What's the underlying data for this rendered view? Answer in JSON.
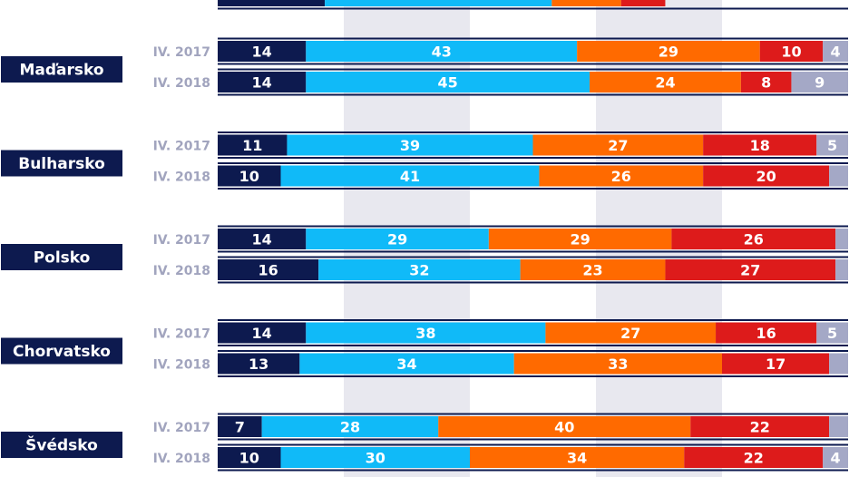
{
  "chart_data": {
    "type": "bar",
    "orientation": "horizontal",
    "stacked": true,
    "xlim": [
      0,
      100
    ],
    "grid": true,
    "colors": [
      "#0d1a4f",
      "#10baf8",
      "#ff6a00",
      "#dd1b1b",
      "#a4a8c6"
    ],
    "label_color": "#ffffff",
    "country_color": "#0d1a4f",
    "year_label_color": "#a1a4be",
    "groups": [
      {
        "country": "",
        "rows": [
          {
            "label": "",
            "values": [
              17,
              36,
              11,
              7,
              0
            ]
          }
        ]
      },
      {
        "country": "Maďarsko",
        "rows": [
          {
            "label": "IV. 2017",
            "values": [
              14,
              43,
              29,
              10,
              4
            ]
          },
          {
            "label": "IV. 2018",
            "values": [
              14,
              45,
              24,
              8,
              9
            ]
          }
        ]
      },
      {
        "country": "Bulharsko",
        "rows": [
          {
            "label": "IV. 2017",
            "values": [
              11,
              39,
              27,
              18,
              5
            ]
          },
          {
            "label": "IV. 2018",
            "values": [
              10,
              41,
              26,
              20,
              3
            ]
          }
        ]
      },
      {
        "country": "Polsko",
        "rows": [
          {
            "label": "IV. 2017",
            "values": [
              14,
              29,
              29,
              26,
              2
            ]
          },
          {
            "label": "IV. 2018",
            "values": [
              16,
              32,
              23,
              27,
              2
            ]
          }
        ]
      },
      {
        "country": "Chorvatsko",
        "rows": [
          {
            "label": "IV. 2017",
            "values": [
              14,
              38,
              27,
              16,
              5
            ]
          },
          {
            "label": "IV. 2018",
            "values": [
              13,
              34,
              33,
              17,
              3
            ]
          }
        ]
      },
      {
        "country": "Švédsko",
        "rows": [
          {
            "label": "IV. 2017",
            "values": [
              7,
              28,
              40,
              22,
              3
            ]
          },
          {
            "label": "IV. 2018",
            "values": [
              10,
              30,
              34,
              22,
              4
            ]
          }
        ]
      }
    ]
  }
}
